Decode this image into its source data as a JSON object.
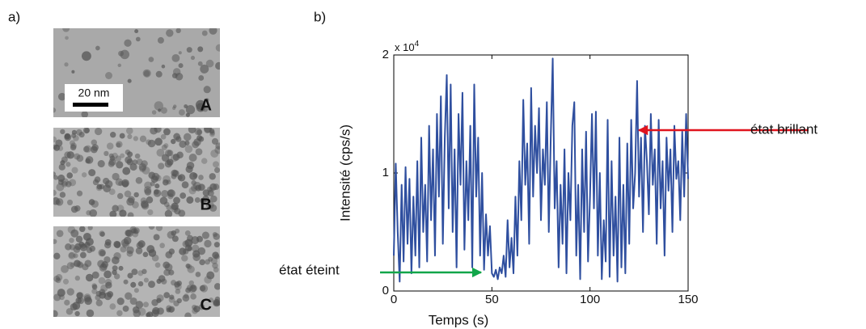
{
  "panel_a": {
    "label": "a)",
    "scale_bar": "20 nm",
    "images": [
      {
        "label": "A"
      },
      {
        "label": "B"
      },
      {
        "label": "C"
      }
    ]
  },
  "chart_data": {
    "type": "line",
    "panel_label": "b)",
    "x_label": "Temps (s)",
    "y_label": "Intensité (cps/s)",
    "y_scale_label": "x 10",
    "y_scale_exponent": "4",
    "annotations": [
      "état brillant",
      "état éteint"
    ],
    "color": "#2f4f9f",
    "xlim": [
      0,
      150
    ],
    "xticks": [
      0,
      50,
      100,
      150
    ],
    "ylim": [
      0,
      20000
    ],
    "yticks": [
      0,
      {
        "value": 10000,
        "label": "1"
      },
      {
        "value": 20000,
        "label": "2"
      }
    ],
    "x": [
      0,
      1,
      2,
      3,
      4,
      5,
      6,
      7,
      8,
      9,
      10,
      11,
      12,
      13,
      14,
      15,
      16,
      17,
      18,
      19,
      20,
      21,
      22,
      23,
      24,
      25,
      26,
      27,
      28,
      29,
      30,
      31,
      32,
      33,
      34,
      35,
      36,
      37,
      38,
      39,
      40,
      41,
      42,
      43,
      44,
      45,
      46,
      47,
      48,
      49,
      50,
      51,
      52,
      53,
      54,
      55,
      56,
      57,
      58,
      59,
      60,
      61,
      62,
      63,
      64,
      65,
      66,
      67,
      68,
      69,
      70,
      71,
      72,
      73,
      74,
      75,
      76,
      77,
      78,
      79,
      80,
      81,
      82,
      83,
      84,
      85,
      86,
      87,
      88,
      89,
      90,
      91,
      92,
      93,
      94,
      95,
      96,
      97,
      98,
      99,
      100,
      101,
      102,
      103,
      104,
      105,
      106,
      107,
      108,
      109,
      110,
      111,
      112,
      113,
      114,
      115,
      116,
      117,
      118,
      119,
      120,
      121,
      122,
      123,
      124,
      125,
      126,
      127,
      128,
      129,
      130,
      131,
      132,
      133,
      134,
      135,
      136,
      137,
      138,
      139,
      140,
      141,
      142,
      143,
      144,
      145,
      146,
      147,
      148,
      149,
      150
    ],
    "values": [
      3000,
      10800,
      5000,
      800,
      9000,
      2500,
      10500,
      4000,
      9500,
      1500,
      8000,
      3000,
      11000,
      2000,
      13000,
      5000,
      9000,
      2500,
      14000,
      6000,
      12000,
      3000,
      15000,
      8000,
      16500,
      4000,
      13000,
      18300,
      7000,
      17500,
      5000,
      12000,
      2000,
      15000,
      9000,
      16800,
      3500,
      11000,
      6000,
      14000,
      2000,
      17500,
      8000,
      13000,
      3000,
      10000,
      1800,
      6500,
      3000,
      5500,
      1500,
      1200,
      1800,
      1000,
      2000,
      1500,
      3000,
      1200,
      6000,
      2000,
      4500,
      1500,
      8000,
      3000,
      11000,
      6000,
      16200,
      9000,
      12500,
      4000,
      17200,
      8000,
      14000,
      10000,
      15500,
      6000,
      12000,
      9000,
      16000,
      5000,
      13000,
      19700,
      7000,
      11000,
      2000,
      9000,
      4000,
      12000,
      1500,
      10000,
      6000,
      14000,
      16000,
      3000,
      9000,
      1000,
      12000,
      5000,
      13500,
      2500,
      8000,
      15000,
      7000,
      15200,
      3000,
      10000,
      1000,
      6000,
      2500,
      14500,
      1200,
      11000,
      3000,
      8000,
      800,
      13000,
      2000,
      9000,
      1500,
      12500,
      4000,
      14500,
      7000,
      10000,
      17800,
      8000,
      13000,
      5000,
      14000,
      11000,
      6500,
      15000,
      9000,
      12000,
      4000,
      14500,
      7000,
      11000,
      3000,
      13000,
      8500,
      12000,
      5000,
      14000,
      9500,
      11000,
      6000,
      13500,
      8000,
      15000,
      9500
    ]
  }
}
